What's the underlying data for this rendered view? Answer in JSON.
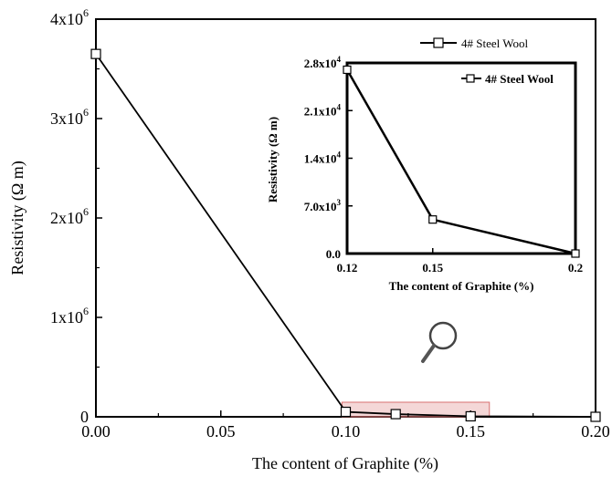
{
  "chart_data": [
    {
      "type": "line",
      "xlabel": "The content of Graphite (%)",
      "ylabel": "Resistivity (Ω m)",
      "xlim": [
        0.0,
        0.2
      ],
      "ylim": [
        0,
        4000000
      ],
      "x_ticks": [
        "0.00",
        "0.05",
        "0.10",
        "0.15",
        "0.20"
      ],
      "y_ticks": [
        {
          "value": 0,
          "mantissa": "0",
          "exponent": ""
        },
        {
          "value": 1000000,
          "mantissa": "1x10",
          "exponent": "6"
        },
        {
          "value": 2000000,
          "mantissa": "2x10",
          "exponent": "6"
        },
        {
          "value": 3000000,
          "mantissa": "3x10",
          "exponent": "6"
        },
        {
          "value": 4000000,
          "mantissa": "4x10",
          "exponent": "6"
        }
      ],
      "legend_position": "top-right",
      "series": [
        {
          "name": "4# Steel Wool",
          "x": [
            0.0,
            0.1,
            0.12,
            0.15,
            0.2
          ],
          "y": [
            3650000,
            50000,
            27000,
            5000,
            0
          ]
        }
      ],
      "annotations": [
        "highlighted zoom region 0.10–0.15",
        "magnifier icon"
      ]
    },
    {
      "type": "line",
      "xlabel": "The content of Graphite (%)",
      "ylabel": "Resistivity (Ω m)",
      "x_ticks": [
        "0.12",
        "0.15",
        "0.2"
      ],
      "y_ticks": [
        {
          "value": 0,
          "mantissa": "0.0",
          "exponent": ""
        },
        {
          "value": 7000,
          "mantissa": "7.0x10",
          "exponent": "3"
        },
        {
          "value": 14000,
          "mantissa": "1.4x10",
          "exponent": "4"
        },
        {
          "value": 21000,
          "mantissa": "2.1x10",
          "exponent": "4"
        },
        {
          "value": 28000,
          "mantissa": "2.8x10",
          "exponent": "4"
        }
      ],
      "ylim": [
        0,
        28000
      ],
      "legend_position": "top-right",
      "series": [
        {
          "name": "4# Steel Wool",
          "x": [
            0.12,
            0.15,
            0.2
          ],
          "y": [
            27000,
            5000,
            0
          ]
        }
      ]
    }
  ]
}
